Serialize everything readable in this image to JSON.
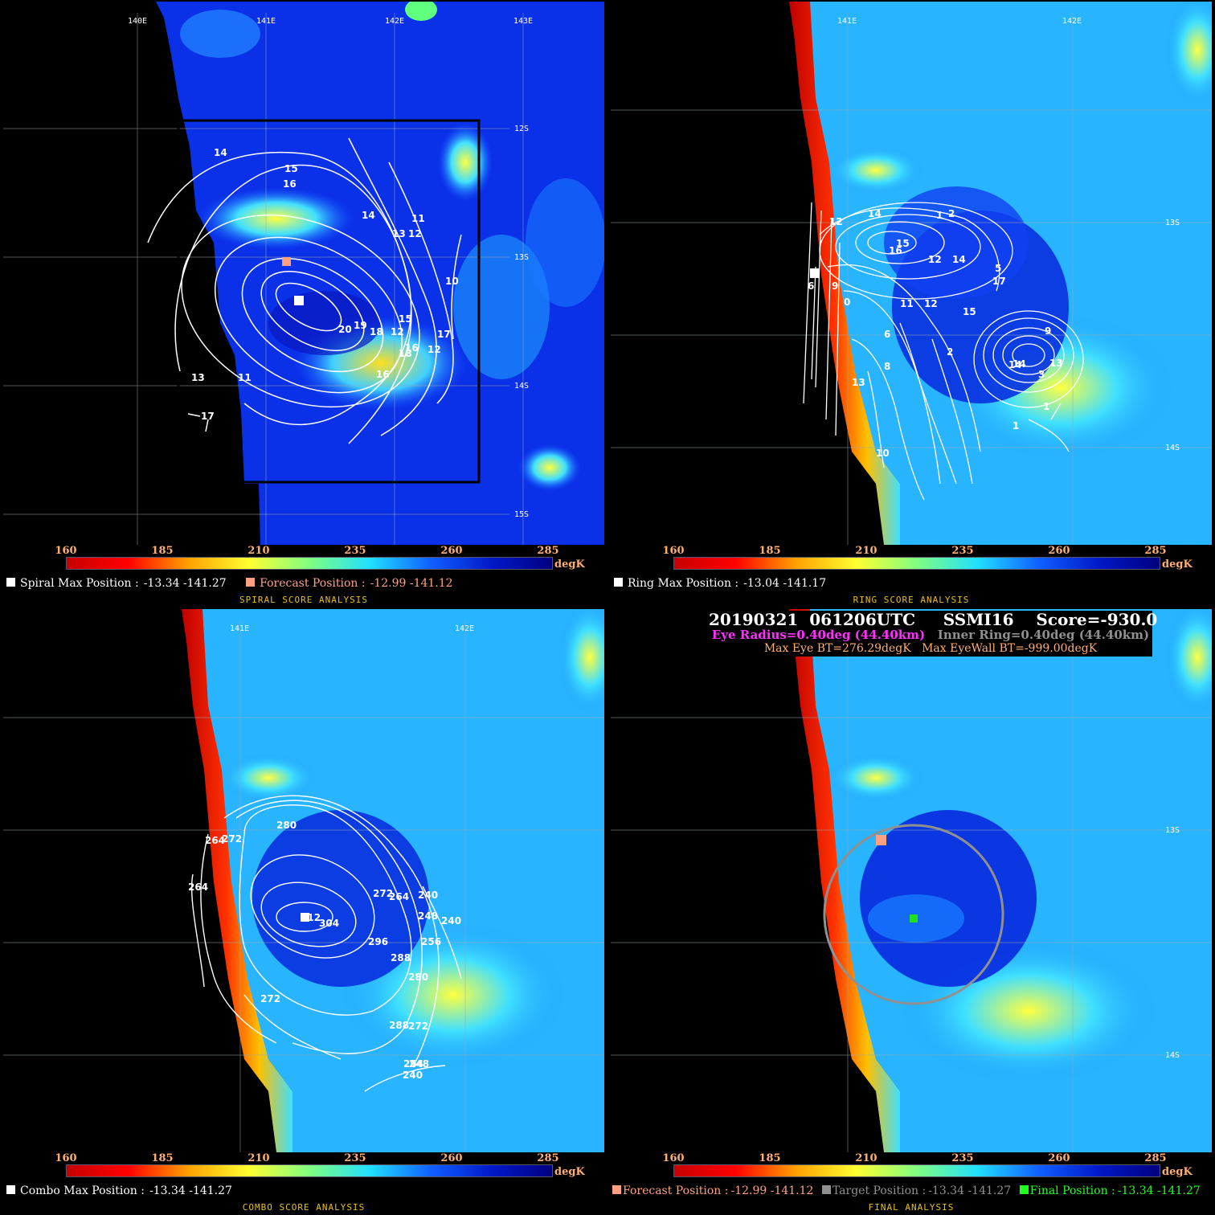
{
  "colorbar": {
    "ticks": [
      "160",
      "185",
      "210",
      "235",
      "260",
      "285"
    ],
    "unit": "degK",
    "stops": [
      "#c80000",
      "#ff0000",
      "#ffa000",
      "#ffff30",
      "#80ff80",
      "#20e0ff",
      "#1060ff",
      "#0018c8",
      "#000080"
    ]
  },
  "panels": [
    {
      "id": "spiral",
      "title": "SPIRAL SCORE ANALYSIS",
      "info": [
        {
          "label": "Spiral Max Position :",
          "value": "-13.34 -141.27",
          "color": "#ffffff",
          "marker": "#ffffff"
        },
        {
          "label": "Forecast Position :",
          "value": "-12.99 -141.12",
          "color": "#ffa080",
          "marker": "#ffa080"
        }
      ],
      "lon_labels": [
        "140E",
        "141E",
        "142E",
        "143E"
      ],
      "lat_labels": [
        "12S",
        "13S",
        "14S",
        "15S"
      ],
      "contour_labels": [
        "14",
        "15",
        "16",
        "14",
        "11",
        "13",
        "12",
        "10",
        "20",
        "19",
        "18",
        "15",
        "12",
        "17",
        "16",
        "13",
        "11",
        "17",
        "18",
        "16",
        "12"
      ]
    },
    {
      "id": "ring",
      "title": "RING SCORE ANALYSIS",
      "info": [
        {
          "label": "Ring Max Position :",
          "value": "-13.04 -141.17",
          "color": "#ffffff",
          "marker": "#ffffff"
        }
      ],
      "lon_labels": [
        "141E",
        "142E"
      ],
      "lat_labels": [
        "13S",
        "14S"
      ],
      "contour_labels": [
        "12",
        "14",
        "1",
        "2",
        "15",
        "16",
        "14",
        "12",
        "5",
        "6",
        "9",
        "0",
        "11",
        "12",
        "17",
        "15",
        "6",
        "13",
        "14",
        "8",
        "2",
        "14",
        "9",
        "13",
        "3",
        "1",
        "1",
        "10"
      ]
    },
    {
      "id": "combo",
      "title": "COMBO SCORE ANALYSIS",
      "info": [
        {
          "label": "Combo Max Position :",
          "value": "-13.34 -141.27",
          "color": "#ffffff",
          "marker": "#ffffff"
        }
      ],
      "lon_labels": [
        "141E",
        "142E"
      ],
      "lat_labels": [],
      "contour_labels": [
        "280",
        "264",
        "272",
        "264",
        "272",
        "264",
        "240",
        "312",
        "304",
        "248",
        "240",
        "296",
        "256",
        "288",
        "280",
        "272",
        "288",
        "272",
        "264",
        "248",
        "240"
      ]
    },
    {
      "id": "final",
      "title": "FINAL ANALYSIS",
      "info": [
        {
          "label": "Forecast Position :",
          "value": "-12.99 -141.12",
          "color": "#ffa080",
          "marker": "#ffa080"
        },
        {
          "label": "Target Position :",
          "value": "-13.34 -141.27",
          "color": "#909090",
          "marker": "#909090"
        },
        {
          "label": "Final Position :",
          "value": "-13.34 -141.27",
          "color": "#20ff20",
          "marker": "#20ff20"
        }
      ],
      "lat_labels": [
        "13S",
        "14S"
      ],
      "header": {
        "line1": "20190321  061206UTC     SSMI16    Score=-930.0",
        "eye_radius": "Eye Radius=0.40deg (44.40km)",
        "inner_ring": "Inner Ring=0.40deg (44.40km)",
        "max_eye": "Max Eye BT=276.29degK",
        "max_eyewall": "Max EyeWall BT=-999.00degK"
      }
    }
  ]
}
